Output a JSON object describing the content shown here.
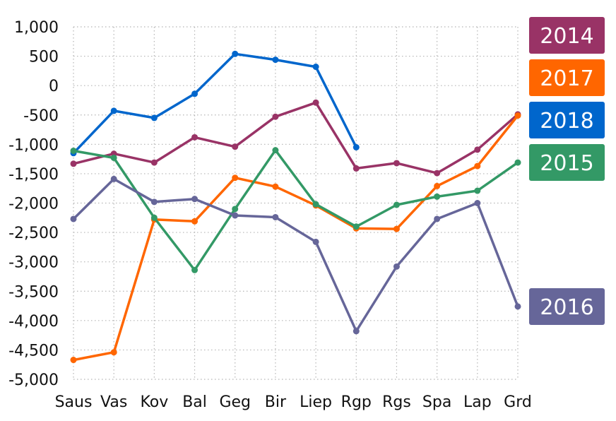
{
  "chart_data": {
    "type": "line",
    "title": "",
    "xlabel": "",
    "ylabel": "",
    "grid": true,
    "legend_placement": "right, end-of-line labels",
    "categories": [
      "Saus",
      "Vas",
      "Kov",
      "Bal",
      "Geg",
      "Bir",
      "Liep",
      "Rgp",
      "Rgs",
      "Spa",
      "Lap",
      "Grd"
    ],
    "ylim": [
      -5000,
      1000
    ],
    "yticks": [
      1000,
      500,
      0,
      -500,
      -1000,
      -1500,
      -2000,
      -2500,
      -3000,
      -3500,
      -4000,
      -4500,
      -5000
    ],
    "ytick_labels": [
      "1,000",
      "500",
      "0",
      "-500",
      "-1,000",
      "-1,500",
      "-2,000",
      "-2,500",
      "-3,000",
      "-3,500",
      "-4,000",
      "-4,500",
      "-5,000"
    ],
    "series": [
      {
        "name": "2014",
        "color": "#993366",
        "values": [
          -1330,
          -1160,
          -1310,
          -880,
          -1040,
          -530,
          -290,
          -1410,
          -1320,
          -1490,
          -1090,
          -490
        ]
      },
      {
        "name": "2017",
        "color": "#ff6600",
        "values": [
          -4670,
          -4540,
          -2280,
          -2310,
          -1570,
          -1720,
          -2040,
          -2430,
          -2440,
          -1710,
          -1370,
          -510
        ]
      },
      {
        "name": "2018",
        "color": "#0066cc",
        "values": [
          -1150,
          -430,
          -550,
          -140,
          540,
          440,
          320,
          -1050,
          null,
          null,
          null,
          null
        ]
      },
      {
        "name": "2015",
        "color": "#339966",
        "values": [
          -1110,
          -1230,
          -2250,
          -3140,
          -2100,
          -1100,
          -2020,
          -2400,
          -2030,
          -1890,
          -1790,
          -1310
        ]
      },
      {
        "name": "2016",
        "color": "#666699",
        "values": [
          -2270,
          -1590,
          -1980,
          -1930,
          -2210,
          -2240,
          -2660,
          -4180,
          -3080,
          -2270,
          -2000,
          -3760
        ]
      }
    ]
  }
}
